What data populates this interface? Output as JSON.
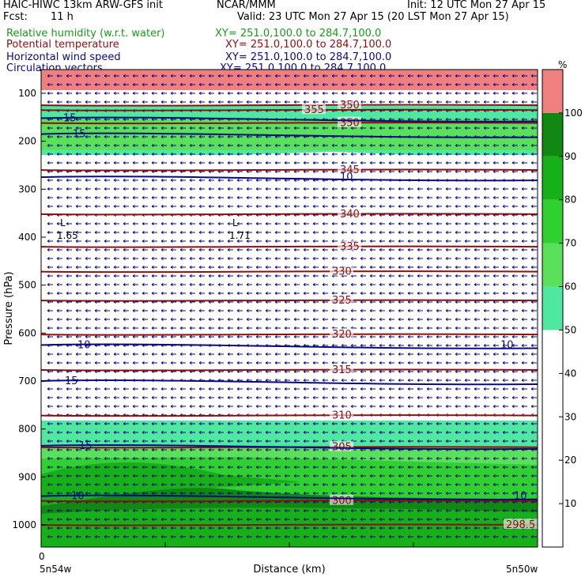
{
  "header": {
    "title": "HAIC-HIWC 13km ARW-GFS init",
    "org": "NCAR/MMM",
    "init": "Init: 12 UTC Mon 27 Apr 15",
    "fcst_label": "Fcst:",
    "fcst_value": "11 h",
    "valid": "Valid: 23 UTC Mon 27 Apr 15 (20 LST Mon 27 Apr 15)",
    "fields": [
      {
        "name": "Relative humidity (w.r.t. water)",
        "xy": "XY= 251.0,100.0 to 284.7,100.0",
        "color": "#1a9a1a"
      },
      {
        "name": "Potential temperature",
        "xy": "XY= 251.0,100.0 to 284.7,100.0",
        "color": "#8a1010"
      },
      {
        "name": "Horizontal wind speed",
        "xy": "XY= 251.0,100.0 to 284.7,100.0",
        "color": "#0a0a80"
      },
      {
        "name": "Circulation vectors",
        "xy": "XY= 251.0,100.0 to 284.7,100.0",
        "color": "#0a0a80"
      }
    ]
  },
  "chart_data": {
    "type": "heatmap",
    "xlabel": "Distance (km)",
    "ylabel": "Pressure (hPa)",
    "x_tick_zero": "0",
    "x_left_label": "5n54w",
    "x_right_label": "5n50w",
    "y_ticks": [
      100,
      200,
      300,
      400,
      500,
      600,
      700,
      800,
      900,
      1000
    ],
    "colorbar": {
      "unit": "%",
      "ticks": [
        10,
        20,
        30,
        40,
        50,
        60,
        70,
        80,
        90,
        100
      ],
      "bands": [
        {
          "from": 0,
          "to": 50,
          "color": "#ffffff"
        },
        {
          "from": 50,
          "to": 60,
          "color": "#50e8a0"
        },
        {
          "from": 60,
          "to": 70,
          "color": "#5ae05a"
        },
        {
          "from": 70,
          "to": 80,
          "color": "#30d030"
        },
        {
          "from": 80,
          "to": 90,
          "color": "#18b018"
        },
        {
          "from": 90,
          "to": 100,
          "color": "#118811"
        },
        {
          "from": 100,
          "to": 110,
          "color": "#f08080"
        }
      ]
    },
    "theta_contours": [
      {
        "label": "350",
        "p": 125
      },
      {
        "label": "355",
        "p": 135
      },
      {
        "label": "350",
        "p": 162
      },
      {
        "label": "345",
        "p": 260
      },
      {
        "label": "340",
        "p": 352
      },
      {
        "label": "335",
        "p": 420
      },
      {
        "label": "330",
        "p": 472
      },
      {
        "label": "325",
        "p": 532
      },
      {
        "label": "320",
        "p": 603
      },
      {
        "label": "315",
        "p": 677
      },
      {
        "label": "310",
        "p": 772
      },
      {
        "label": "305",
        "p": 838
      },
      {
        "label": "300",
        "p": 950
      },
      {
        "label": "298.5",
        "p": 1000
      }
    ],
    "wind_contours": [
      {
        "label": "15",
        "p": 152
      },
      {
        "label": "15",
        "p": 185
      },
      {
        "label": "10",
        "p": 275
      },
      {
        "label": "10",
        "p": 625
      },
      {
        "label": "15",
        "p": 700
      },
      {
        "label": "15",
        "p": 835
      },
      {
        "label": "10",
        "p": 940
      }
    ],
    "lows": [
      {
        "label": "L",
        "value": "1.65"
      },
      {
        "label": "L",
        "value": "1.71"
      }
    ],
    "extra_labels": [
      "10",
      "10"
    ]
  }
}
